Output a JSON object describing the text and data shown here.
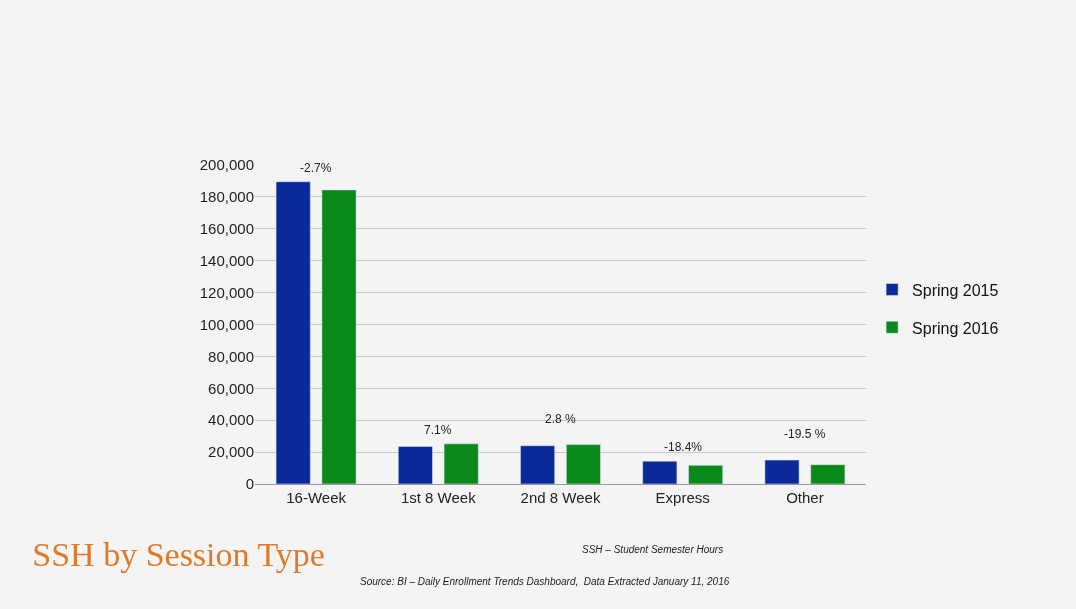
{
  "chart_data": {
    "type": "bar",
    "title": "SSH by Session Type",
    "categories": [
      "16-Week",
      "1st 8 Week",
      "2nd 8 Week",
      "Express",
      "Other"
    ],
    "series": [
      {
        "name": "Spring 2015",
        "color": "#0a2a9a",
        "values": [
          189500,
          23500,
          24000,
          14300,
          15000
        ]
      },
      {
        "name": "Spring 2016",
        "color": "#0a8a1a",
        "values": [
          184400,
          25200,
          24700,
          11700,
          12100
        ]
      }
    ],
    "ylim": [
      0,
      200000
    ],
    "yticks": [
      {
        "value": 0,
        "label": "0"
      },
      {
        "value": 20000,
        "label": "20,000"
      },
      {
        "value": 40000,
        "label": "40,000"
      },
      {
        "value": 60000,
        "label": "60,000"
      },
      {
        "value": 80000,
        "label": "80,000"
      },
      {
        "value": 100000,
        "label": "100,000"
      },
      {
        "value": 120000,
        "label": "120,000"
      },
      {
        "value": 140000,
        "label": "140,000"
      },
      {
        "value": 160000,
        "label": "160,000"
      },
      {
        "value": 180000,
        "label": "180,000"
      },
      {
        "value": 200000,
        "label": "200,000"
      }
    ],
    "grid": "y",
    "legend": "right",
    "annotations": [
      "-2.7%",
      "7.1%",
      "2.8 %",
      "-18.4%",
      "-19.5 %",
      "SSH – Student Semester Hours",
      "Source: BI – Daily Enrollment Trends Dashboard,  Data Extracted January 11, 2016"
    ]
  }
}
